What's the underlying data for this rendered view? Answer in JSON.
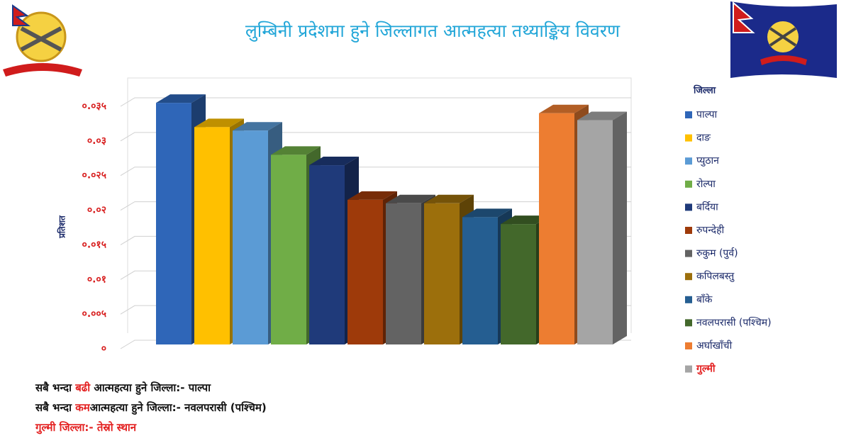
{
  "chart_data": {
    "type": "bar3d",
    "title": "लुम्बिनी प्रदेशमा हुने जिल्लागत आत्महत्या तथ्याङ्किय विवरण",
    "y_label": "प्रतिशत",
    "legend_title": "जिल्ला",
    "categories": [
      "पाल्पा",
      "दाङ",
      "प्युठान",
      "रोल्पा",
      "बर्दिया",
      "रुपन्देही",
      "रुकुम (पुर्व)",
      "कपिलबस्तु",
      "बाँके",
      "नवलपरासी (पश्चिम)",
      "अर्घाखाँची",
      "गुल्मी"
    ],
    "values": [
      0.0355,
      0.032,
      0.0315,
      0.028,
      0.0265,
      0.0215,
      0.021,
      0.021,
      0.019,
      0.018,
      0.034,
      0.033
    ],
    "colors": [
      "#2f66b8",
      "#ffc000",
      "#5b9bd5",
      "#70ad47",
      "#1f3a7a",
      "#9e3a0a",
      "#636363",
      "#9c6f0c",
      "#255e91",
      "#43682b",
      "#ed7d31",
      "#a5a5a5"
    ],
    "ylim": [
      0,
      0.035
    ],
    "yticks": [
      {
        "value": 0,
        "label": "०"
      },
      {
        "value": 0.005,
        "label": "०.००५"
      },
      {
        "value": 0.01,
        "label": "०.०१"
      },
      {
        "value": 0.015,
        "label": "०.०१५"
      },
      {
        "value": 0.02,
        "label": "०.०२"
      },
      {
        "value": 0.025,
        "label": "०.०२५"
      },
      {
        "value": 0.03,
        "label": "०.०३"
      },
      {
        "value": 0.035,
        "label": "०.०३५"
      }
    ],
    "grid": true,
    "legend": "right"
  },
  "notes": [
    [
      "सबै भन्दा ",
      "बढी",
      " आत्महत्या हुने जिल्ला:- पाल्पा"
    ],
    [
      "सबै भन्दा ",
      "कम",
      "आत्महत्या हुने जिल्ला:- नवलपरासी (पश्चिम)"
    ],
    [
      "गुल्मी जिल्ला:- तेस्रो स्थान"
    ]
  ]
}
